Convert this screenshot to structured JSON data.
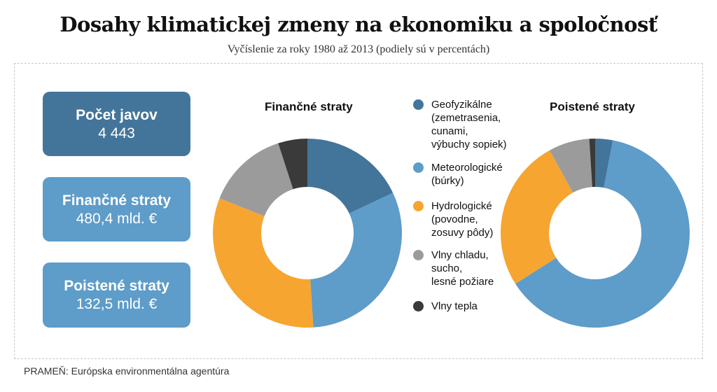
{
  "header": {
    "title": "Dosahy klimatickej zmeny na ekonomiku a spoločnosť",
    "subtitle": "Vyčíslenie za roky 1980 až 2013 (podiely sú v percentách)"
  },
  "stats": [
    {
      "label": "Počet javov",
      "value": "4 443"
    },
    {
      "label": "Finančné straty",
      "value": "480,4 mld. €"
    },
    {
      "label": "Poistené straty",
      "value": "132,5 mld. €"
    }
  ],
  "legend": [
    {
      "label": "Geofyzikálne\n(zemetrasenia,\ncunami,\nvýbuchy sopiek)",
      "color": "#43759a"
    },
    {
      "label": "Meteorologické\n(búrky)",
      "color": "#5e9cc9"
    },
    {
      "label": "Hydrologické\n(povodne,\nzosuvy pôdy)",
      "color": "#f6a531"
    },
    {
      "label": "Vlny chladu,\nsucho,\nlesné požiare",
      "color": "#9b9b9b"
    },
    {
      "label": "Vlny tepla",
      "color": "#3a3a3a"
    }
  ],
  "chart_data": [
    {
      "type": "pie",
      "donut": true,
      "title": "Finančné straty",
      "categories": [
        "Geofyzikálne",
        "Meteorologické",
        "Hydrologické",
        "Vlny chladu, sucho, lesné požiare",
        "Vlny tepla"
      ],
      "values": [
        18,
        31,
        32,
        14,
        5
      ],
      "colors": [
        "#43759a",
        "#5e9cc9",
        "#f6a531",
        "#9b9b9b",
        "#3a3a3a"
      ]
    },
    {
      "type": "pie",
      "donut": true,
      "title": "Poistené straty",
      "categories": [
        "Geofyzikálne",
        "Meteorologické",
        "Hydrologické",
        "Vlny chladu, sucho, lesné požiare",
        "Vlny tepla"
      ],
      "values": [
        3,
        63,
        26,
        7,
        1
      ],
      "colors": [
        "#43759a",
        "#5e9cc9",
        "#f6a531",
        "#9b9b9b",
        "#3a3a3a"
      ]
    }
  ],
  "footer": {
    "source": "PRAMEŇ: Európska environmentálna agentúra"
  }
}
